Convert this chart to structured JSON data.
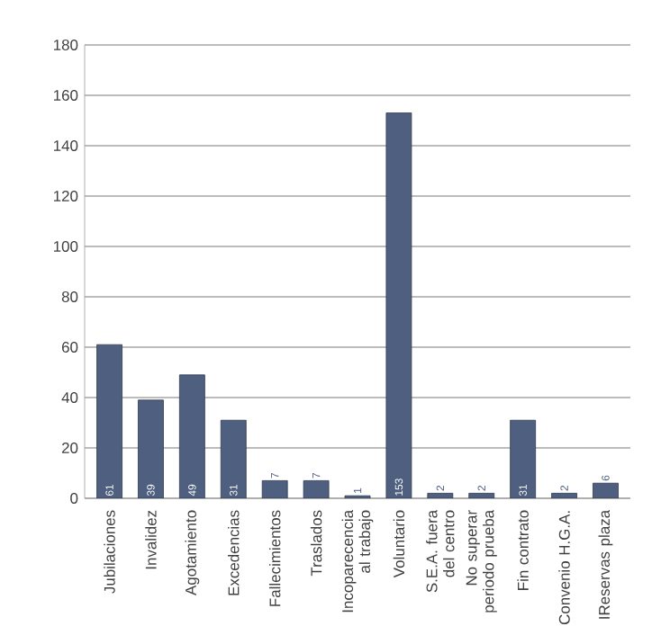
{
  "chart_data": {
    "type": "bar",
    "categories": [
      "Jubilaciones",
      "Invalidez",
      "Agotamiento",
      "Excedencias",
      "Fallecimientos",
      "Traslados",
      "Incoparecencia al trabajo",
      "Voluntario",
      "S.E.A. fuera del centro",
      "No superar periodo prueba",
      "Fin contrato",
      "Convenio H.G.A.",
      "IReservas plaza"
    ],
    "values": [
      61,
      39,
      49,
      31,
      7,
      7,
      1,
      153,
      2,
      2,
      31,
      2,
      6
    ],
    "color": "#4e5f80",
    "data_labels": true,
    "grid": "y",
    "ylim": [
      0,
      180
    ],
    "yticks": [
      0,
      20,
      40,
      60,
      80,
      100,
      120,
      140,
      160,
      180
    ]
  }
}
